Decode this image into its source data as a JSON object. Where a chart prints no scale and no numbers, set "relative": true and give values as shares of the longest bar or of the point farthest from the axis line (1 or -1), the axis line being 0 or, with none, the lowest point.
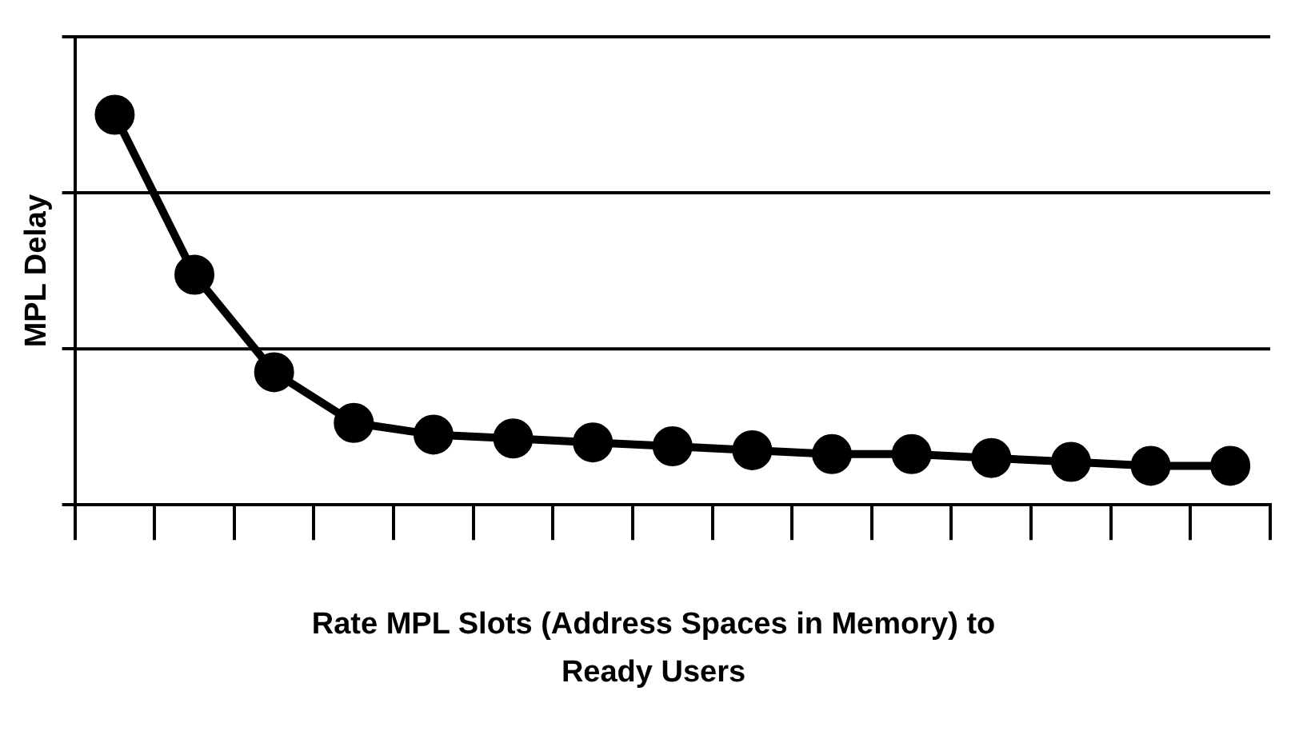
{
  "chart_data": {
    "type": "line",
    "relative": true,
    "xlabel": "Rate MPL Slots (Address Spaces in Memory) to Ready Users",
    "ylabel": "MPL Delay",
    "categories": [
      null,
      null,
      null,
      null,
      null,
      null,
      null,
      null,
      null,
      null,
      null,
      null,
      null,
      null,
      null
    ],
    "series": [
      {
        "color": "#000000",
        "values": [
          1,
          0.59,
          0.34,
          0.21,
          0.18,
          0.17,
          0.16,
          0.15,
          0.14,
          0.13,
          0.13,
          0.12,
          0.11,
          0.1,
          0.1
        ]
      }
    ],
    "ref_lines": [
      {
        "axis": "y",
        "value": 0.4,
        "color": "#000000"
      },
      {
        "axis": "y",
        "value": 0.8,
        "color": "#000000"
      },
      {
        "axis": "y",
        "value": 1.2,
        "color": "#000000"
      }
    ],
    "marker": "circle",
    "line_style": "solid",
    "legend": false
  }
}
